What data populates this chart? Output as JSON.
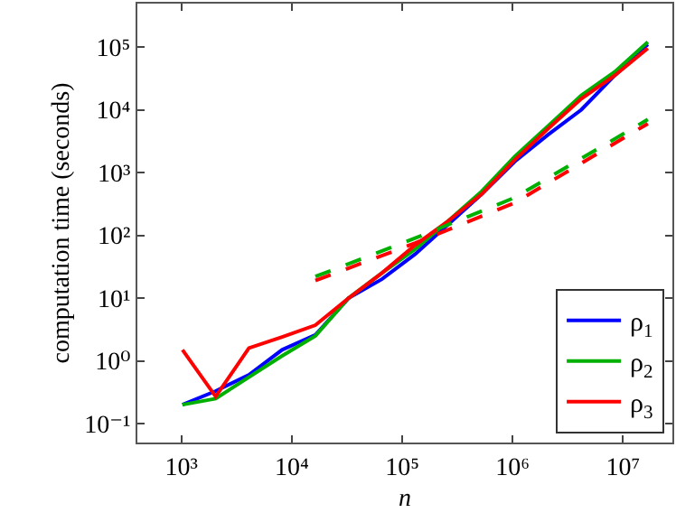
{
  "chart_data": {
    "type": "line",
    "xlabel": "n",
    "ylabel": "computation time (seconds)",
    "log": "xy",
    "grid": false,
    "legend": "bottom right",
    "marker": "none",
    "xlim": [
      400,
      28000000
    ],
    "ylim": [
      0.05,
      490000
    ],
    "xticks": [
      {
        "value": 1000,
        "label": "10³"
      },
      {
        "value": 10000,
        "label": "10⁴"
      },
      {
        "value": 100000,
        "label": "10⁵"
      },
      {
        "value": 1000000,
        "label": "10⁶"
      },
      {
        "value": 10000000,
        "label": "10⁷"
      }
    ],
    "yticks": [
      {
        "value": 0.1,
        "label": "10⁻¹"
      },
      {
        "value": 1,
        "label": "10⁰"
      },
      {
        "value": 10,
        "label": "10¹"
      },
      {
        "value": 100,
        "label": "10²"
      },
      {
        "value": 1000,
        "label": "10³"
      },
      {
        "value": 10000,
        "label": "10⁴"
      },
      {
        "value": 100000,
        "label": "10⁵"
      }
    ],
    "x": [
      1024,
      2048,
      4096,
      8192,
      16384,
      32768,
      65536,
      131072,
      262144,
      524288,
      1048576,
      2097152,
      4194304,
      8388608,
      16777216
    ],
    "series": [
      {
        "name": "ρ$_{1}$",
        "color": "#0000ff",
        "line_style": "solid",
        "values": [
          0.2,
          0.33,
          0.6,
          1.5,
          2.6,
          10,
          20,
          50,
          150,
          450,
          1500,
          4000,
          10000,
          35000,
          110000
        ]
      },
      {
        "name": "ρ$_{2}$",
        "color": "#00b000",
        "line_style": "solid",
        "values": [
          0.2,
          0.25,
          0.55,
          1.2,
          2.5,
          10,
          25,
          60,
          170,
          500,
          1800,
          5500,
          17000,
          40000,
          120000
        ]
      },
      {
        "name": "ρ$_{3}$",
        "color": "#ff0000",
        "line_style": "solid",
        "values": [
          1.5,
          0.27,
          1.6,
          2.4,
          3.7,
          10,
          25,
          70,
          170,
          450,
          1600,
          5000,
          15000,
          35000,
          95000
        ]
      },
      {
        "color": "#00b000",
        "line_style": "dashed",
        "x": [
          16384,
          131072,
          1048576,
          16777216
        ],
        "values": [
          22,
          90,
          400,
          7000
        ]
      },
      {
        "color": "#ff0000",
        "line_style": "dashed",
        "x": [
          16384,
          131072,
          1048576,
          16777216
        ],
        "values": [
          19,
          75,
          330,
          6000
        ]
      }
    ]
  }
}
